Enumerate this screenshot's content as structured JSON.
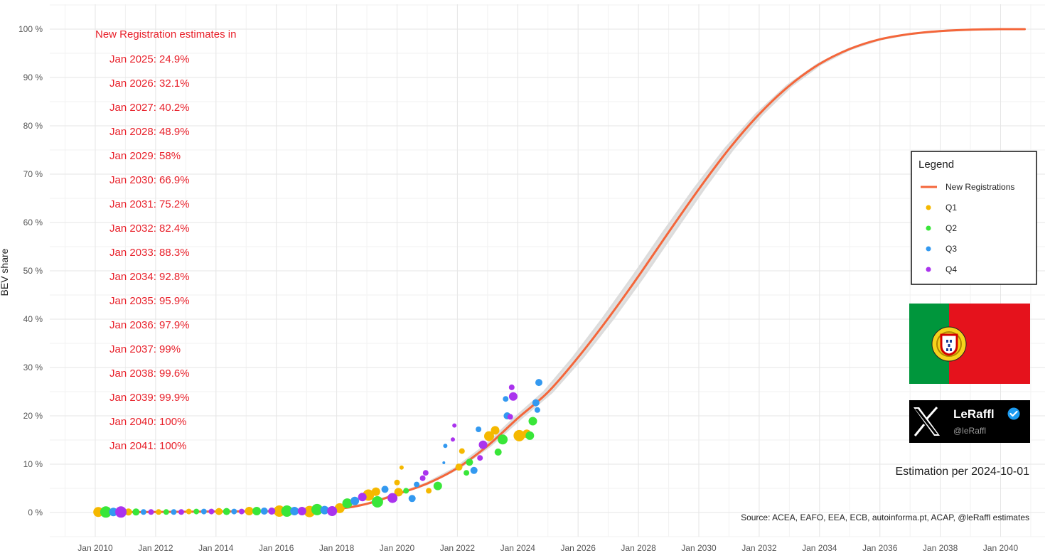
{
  "chart_data": {
    "type": "scatter",
    "title": "",
    "xlabel": "",
    "ylabel": "BEV share",
    "xlim": [
      2009.0,
      2041.0
    ],
    "ylim": [
      -5,
      102
    ],
    "grid": true,
    "y_ticks": [
      {
        "value": 0,
        "label": "0 %"
      },
      {
        "value": 10,
        "label": "10 %"
      },
      {
        "value": 20,
        "label": "20 %"
      },
      {
        "value": 30,
        "label": "30 %"
      },
      {
        "value": 40,
        "label": "40 %"
      },
      {
        "value": 50,
        "label": "50 %"
      },
      {
        "value": 60,
        "label": "60 %"
      },
      {
        "value": 70,
        "label": "70 %"
      },
      {
        "value": 80,
        "label": "80 %"
      },
      {
        "value": 90,
        "label": "90 %"
      },
      {
        "value": 100,
        "label": "100 %"
      }
    ],
    "x_ticks": [
      {
        "value": 2010,
        "label": "Jan 2010"
      },
      {
        "value": 2012,
        "label": "Jan 2012"
      },
      {
        "value": 2014,
        "label": "Jan 2014"
      },
      {
        "value": 2016,
        "label": "Jan 2016"
      },
      {
        "value": 2018,
        "label": "Jan 2018"
      },
      {
        "value": 2020,
        "label": "Jan 2020"
      },
      {
        "value": 2022,
        "label": "Jan 2022"
      },
      {
        "value": 2024,
        "label": "Jan 2024"
      },
      {
        "value": 2026,
        "label": "Jan 2026"
      },
      {
        "value": 2028,
        "label": "Jan 2028"
      },
      {
        "value": 2030,
        "label": "Jan 2030"
      },
      {
        "value": 2032,
        "label": "Jan 2032"
      },
      {
        "value": 2034,
        "label": "Jan 2034"
      },
      {
        "value": 2036,
        "label": "Jan 2036"
      },
      {
        "value": 2038,
        "label": "Jan 2038"
      },
      {
        "value": 2040,
        "label": "Jan 2040"
      }
    ],
    "curve": {
      "name": "New Registrations",
      "color": "#f4663a",
      "band_color": "#dcdcdc",
      "points": [
        {
          "x": 2010,
          "y": 0.0
        },
        {
          "x": 2012,
          "y": 0.1
        },
        {
          "x": 2014,
          "y": 0.2
        },
        {
          "x": 2016,
          "y": 0.3
        },
        {
          "x": 2018,
          "y": 0.8
        },
        {
          "x": 2019,
          "y": 1.8
        },
        {
          "x": 2020,
          "y": 3.8
        },
        {
          "x": 2021,
          "y": 6.0
        },
        {
          "x": 2022,
          "y": 9.2
        },
        {
          "x": 2023,
          "y": 13.8
        },
        {
          "x": 2024,
          "y": 19.5
        },
        {
          "x": 2025,
          "y": 24.9
        },
        {
          "x": 2026,
          "y": 32.1
        },
        {
          "x": 2027,
          "y": 40.2
        },
        {
          "x": 2028,
          "y": 48.9
        },
        {
          "x": 2029,
          "y": 58.0
        },
        {
          "x": 2030,
          "y": 66.9
        },
        {
          "x": 2031,
          "y": 75.2
        },
        {
          "x": 2032,
          "y": 82.4
        },
        {
          "x": 2033,
          "y": 88.3
        },
        {
          "x": 2034,
          "y": 92.8
        },
        {
          "x": 2035,
          "y": 95.9
        },
        {
          "x": 2036,
          "y": 97.9
        },
        {
          "x": 2037,
          "y": 99.0
        },
        {
          "x": 2038,
          "y": 99.6
        },
        {
          "x": 2039,
          "y": 99.9
        },
        {
          "x": 2040,
          "y": 100.0
        },
        {
          "x": 2040.8,
          "y": 100.0
        }
      ]
    },
    "series": [
      {
        "name": "Q1",
        "color": "#f5b800",
        "points": [
          {
            "x": 2010.1,
            "y": 0.1,
            "s": 7
          },
          {
            "x": 2011.1,
            "y": 0.1,
            "s": 5
          },
          {
            "x": 2012.1,
            "y": 0.1,
            "s": 4
          },
          {
            "x": 2013.1,
            "y": 0.2,
            "s": 4
          },
          {
            "x": 2014.1,
            "y": 0.2,
            "s": 5
          },
          {
            "x": 2015.1,
            "y": 0.3,
            "s": 6
          },
          {
            "x": 2016.1,
            "y": 0.3,
            "s": 8
          },
          {
            "x": 2017.1,
            "y": 0.2,
            "s": 8
          },
          {
            "x": 2018.1,
            "y": 0.9,
            "s": 7
          },
          {
            "x": 2019.05,
            "y": 3.6,
            "s": 8
          },
          {
            "x": 2019.3,
            "y": 4.3,
            "s": 6
          },
          {
            "x": 2020.05,
            "y": 4.2,
            "s": 6
          },
          {
            "x": 2020.0,
            "y": 6.2,
            "s": 4
          },
          {
            "x": 2020.15,
            "y": 9.3,
            "s": 3
          },
          {
            "x": 2021.05,
            "y": 4.5,
            "s": 4
          },
          {
            "x": 2022.05,
            "y": 9.4,
            "s": 5
          },
          {
            "x": 2022.15,
            "y": 12.7,
            "s": 4
          },
          {
            "x": 2023.05,
            "y": 15.8,
            "s": 7
          },
          {
            "x": 2023.25,
            "y": 17.0,
            "s": 6
          },
          {
            "x": 2024.05,
            "y": 15.9,
            "s": 8
          },
          {
            "x": 2024.3,
            "y": 16.3,
            "s": 6
          }
        ]
      },
      {
        "name": "Q2",
        "color": "#39e639",
        "points": [
          {
            "x": 2010.35,
            "y": 0.1,
            "s": 8
          },
          {
            "x": 2011.35,
            "y": 0.1,
            "s": 5
          },
          {
            "x": 2012.35,
            "y": 0.1,
            "s": 4
          },
          {
            "x": 2013.35,
            "y": 0.2,
            "s": 4
          },
          {
            "x": 2014.35,
            "y": 0.2,
            "s": 5
          },
          {
            "x": 2015.35,
            "y": 0.3,
            "s": 6
          },
          {
            "x": 2016.35,
            "y": 0.3,
            "s": 8
          },
          {
            "x": 2017.35,
            "y": 0.6,
            "s": 8
          },
          {
            "x": 2018.35,
            "y": 1.9,
            "s": 7
          },
          {
            "x": 2019.35,
            "y": 2.2,
            "s": 8
          },
          {
            "x": 2020.3,
            "y": 4.5,
            "s": 4
          },
          {
            "x": 2021.35,
            "y": 5.5,
            "s": 6
          },
          {
            "x": 2022.3,
            "y": 8.2,
            "s": 4
          },
          {
            "x": 2022.4,
            "y": 10.4,
            "s": 5
          },
          {
            "x": 2023.35,
            "y": 12.5,
            "s": 5
          },
          {
            "x": 2023.5,
            "y": 15.1,
            "s": 7
          },
          {
            "x": 2024.4,
            "y": 15.9,
            "s": 6
          },
          {
            "x": 2024.5,
            "y": 18.9,
            "s": 6
          }
        ]
      },
      {
        "name": "Q3",
        "color": "#3399f0",
        "points": [
          {
            "x": 2010.6,
            "y": 0.1,
            "s": 6
          },
          {
            "x": 2011.6,
            "y": 0.1,
            "s": 4
          },
          {
            "x": 2012.6,
            "y": 0.1,
            "s": 4
          },
          {
            "x": 2013.6,
            "y": 0.2,
            "s": 4
          },
          {
            "x": 2014.6,
            "y": 0.2,
            "s": 4
          },
          {
            "x": 2015.6,
            "y": 0.3,
            "s": 5
          },
          {
            "x": 2016.6,
            "y": 0.3,
            "s": 6
          },
          {
            "x": 2017.6,
            "y": 0.5,
            "s": 6
          },
          {
            "x": 2018.6,
            "y": 2.4,
            "s": 6
          },
          {
            "x": 2019.6,
            "y": 4.8,
            "s": 5
          },
          {
            "x": 2020.5,
            "y": 2.9,
            "s": 5
          },
          {
            "x": 2020.65,
            "y": 5.8,
            "s": 4
          },
          {
            "x": 2021.6,
            "y": 13.8,
            "s": 3
          },
          {
            "x": 2021.55,
            "y": 10.3,
            "s": 2
          },
          {
            "x": 2022.55,
            "y": 8.7,
            "s": 5
          },
          {
            "x": 2022.7,
            "y": 17.2,
            "s": 4
          },
          {
            "x": 2023.65,
            "y": 20.0,
            "s": 5
          },
          {
            "x": 2023.6,
            "y": 23.5,
            "s": 4
          },
          {
            "x": 2024.6,
            "y": 22.7,
            "s": 5
          },
          {
            "x": 2024.7,
            "y": 26.9,
            "s": 5
          },
          {
            "x": 2024.65,
            "y": 21.2,
            "s": 4
          }
        ]
      },
      {
        "name": "Q4",
        "color": "#aa33ee",
        "points": [
          {
            "x": 2010.85,
            "y": 0.1,
            "s": 8
          },
          {
            "x": 2011.85,
            "y": 0.1,
            "s": 4
          },
          {
            "x": 2012.85,
            "y": 0.1,
            "s": 4
          },
          {
            "x": 2013.85,
            "y": 0.2,
            "s": 4
          },
          {
            "x": 2014.85,
            "y": 0.2,
            "s": 4
          },
          {
            "x": 2015.85,
            "y": 0.3,
            "s": 5
          },
          {
            "x": 2016.85,
            "y": 0.3,
            "s": 6
          },
          {
            "x": 2017.85,
            "y": 0.3,
            "s": 7
          },
          {
            "x": 2018.85,
            "y": 3.2,
            "s": 6
          },
          {
            "x": 2019.85,
            "y": 3.0,
            "s": 7
          },
          {
            "x": 2020.85,
            "y": 7.1,
            "s": 4
          },
          {
            "x": 2020.95,
            "y": 8.2,
            "s": 4
          },
          {
            "x": 2021.85,
            "y": 15.1,
            "s": 3
          },
          {
            "x": 2021.9,
            "y": 18.0,
            "s": 3
          },
          {
            "x": 2022.85,
            "y": 14.0,
            "s": 6
          },
          {
            "x": 2022.75,
            "y": 11.3,
            "s": 4
          },
          {
            "x": 2023.85,
            "y": 24.0,
            "s": 6
          },
          {
            "x": 2023.8,
            "y": 25.9,
            "s": 4
          },
          {
            "x": 2023.75,
            "y": 19.8,
            "s": 4
          }
        ]
      }
    ],
    "legend": {
      "title": "Legend",
      "position": "right",
      "entries": [
        {
          "label": "New Registrations",
          "kind": "line",
          "color": "#f4663a"
        },
        {
          "label": "Q1",
          "kind": "point",
          "color": "#f5b800"
        },
        {
          "label": "Q2",
          "kind": "point",
          "color": "#39e639"
        },
        {
          "label": "Q3",
          "kind": "point",
          "color": "#3399f0"
        },
        {
          "label": "Q4",
          "kind": "point",
          "color": "#aa33ee"
        }
      ]
    },
    "annotations": {
      "estimates_title": "New Registration estimates in",
      "estimates": [
        "Jan 2025: 24.9%",
        "Jan 2026: 32.1%",
        "Jan 2027: 40.2%",
        "Jan 2028: 48.9%",
        "Jan 2029: 58%",
        "Jan 2030: 66.9%",
        "Jan 2031: 75.2%",
        "Jan 2032: 82.4%",
        "Jan 2033: 88.3%",
        "Jan 2034: 92.8%",
        "Jan 2035: 95.9%",
        "Jan 2036: 97.9%",
        "Jan 2037: 99%",
        "Jan 2038: 99.6%",
        "Jan 2039: 99.9%",
        "Jan 2040: 100%",
        "Jan 2041: 100%"
      ],
      "estimation_date": "Estimation per 2024-10-01",
      "source": "Source: ACEA, EAFO, EEA, ECB, autoinforma.pt, ACAP, @leRaffl estimates"
    }
  },
  "badge": {
    "name": "LeRaffl",
    "handle": "@leRaffl",
    "verified_icon": "verified-check-icon",
    "logo_icon": "x-logo-icon"
  },
  "flag": {
    "icon": "portugal-flag-icon",
    "green": "#00963c",
    "red": "#e5121c"
  }
}
